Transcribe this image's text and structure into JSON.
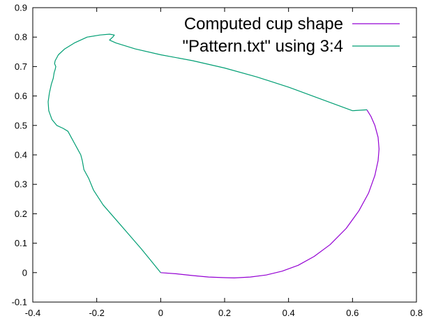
{
  "chart_data": {
    "type": "line",
    "title": "",
    "xlabel": "",
    "ylabel": "",
    "xlim": [
      -0.4,
      0.8
    ],
    "ylim": [
      -0.1,
      0.9
    ],
    "xticks": [
      "-0.4",
      "-0.2",
      "0",
      "0.2",
      "0.4",
      "0.6",
      "0.8"
    ],
    "yticks": [
      "-0.1",
      "0",
      "0.1",
      "0.2",
      "0.3",
      "0.4",
      "0.5",
      "0.6",
      "0.7",
      "0.8",
      "0.9"
    ],
    "grid": false,
    "legend_position": "top-right",
    "series": [
      {
        "name": "Computed cup shape",
        "color": "#9400d3",
        "x": [
          0.0,
          0.05,
          0.1,
          0.15,
          0.2,
          0.23,
          0.28,
          0.33,
          0.38,
          0.43,
          0.48,
          0.53,
          0.58,
          0.62,
          0.65,
          0.67,
          0.68,
          0.683,
          0.68,
          0.67,
          0.658,
          0.645
        ],
        "y": [
          0.0,
          -0.004,
          -0.01,
          -0.015,
          -0.017,
          -0.018,
          -0.015,
          -0.008,
          0.005,
          0.025,
          0.055,
          0.095,
          0.15,
          0.21,
          0.27,
          0.33,
          0.38,
          0.42,
          0.46,
          0.5,
          0.53,
          0.553
        ]
      },
      {
        "name": "\"Pattern.txt\" using 3:4",
        "color": "#009e73",
        "x": [
          0.0,
          -0.03,
          -0.06,
          -0.1,
          -0.14,
          -0.18,
          -0.21,
          -0.225,
          -0.24,
          -0.245,
          -0.25,
          -0.26,
          -0.27,
          -0.28,
          -0.29,
          -0.305,
          -0.325,
          -0.34,
          -0.35,
          -0.352,
          -0.348,
          -0.342,
          -0.336,
          -0.333,
          -0.33,
          -0.328,
          -0.332,
          -0.33,
          -0.32,
          -0.3,
          -0.27,
          -0.23,
          -0.19,
          -0.16,
          -0.145,
          -0.15,
          -0.16,
          -0.14,
          -0.08,
          0.0,
          0.1,
          0.2,
          0.3,
          0.4,
          0.5,
          0.6,
          0.645
        ],
        "y": [
          0.0,
          0.04,
          0.08,
          0.13,
          0.18,
          0.23,
          0.28,
          0.32,
          0.35,
          0.38,
          0.4,
          0.42,
          0.44,
          0.46,
          0.48,
          0.49,
          0.5,
          0.52,
          0.55,
          0.58,
          0.61,
          0.64,
          0.66,
          0.68,
          0.69,
          0.7,
          0.71,
          0.72,
          0.74,
          0.76,
          0.78,
          0.8,
          0.807,
          0.81,
          0.807,
          0.8,
          0.79,
          0.78,
          0.76,
          0.74,
          0.72,
          0.695,
          0.665,
          0.63,
          0.59,
          0.55,
          0.553
        ]
      }
    ]
  }
}
